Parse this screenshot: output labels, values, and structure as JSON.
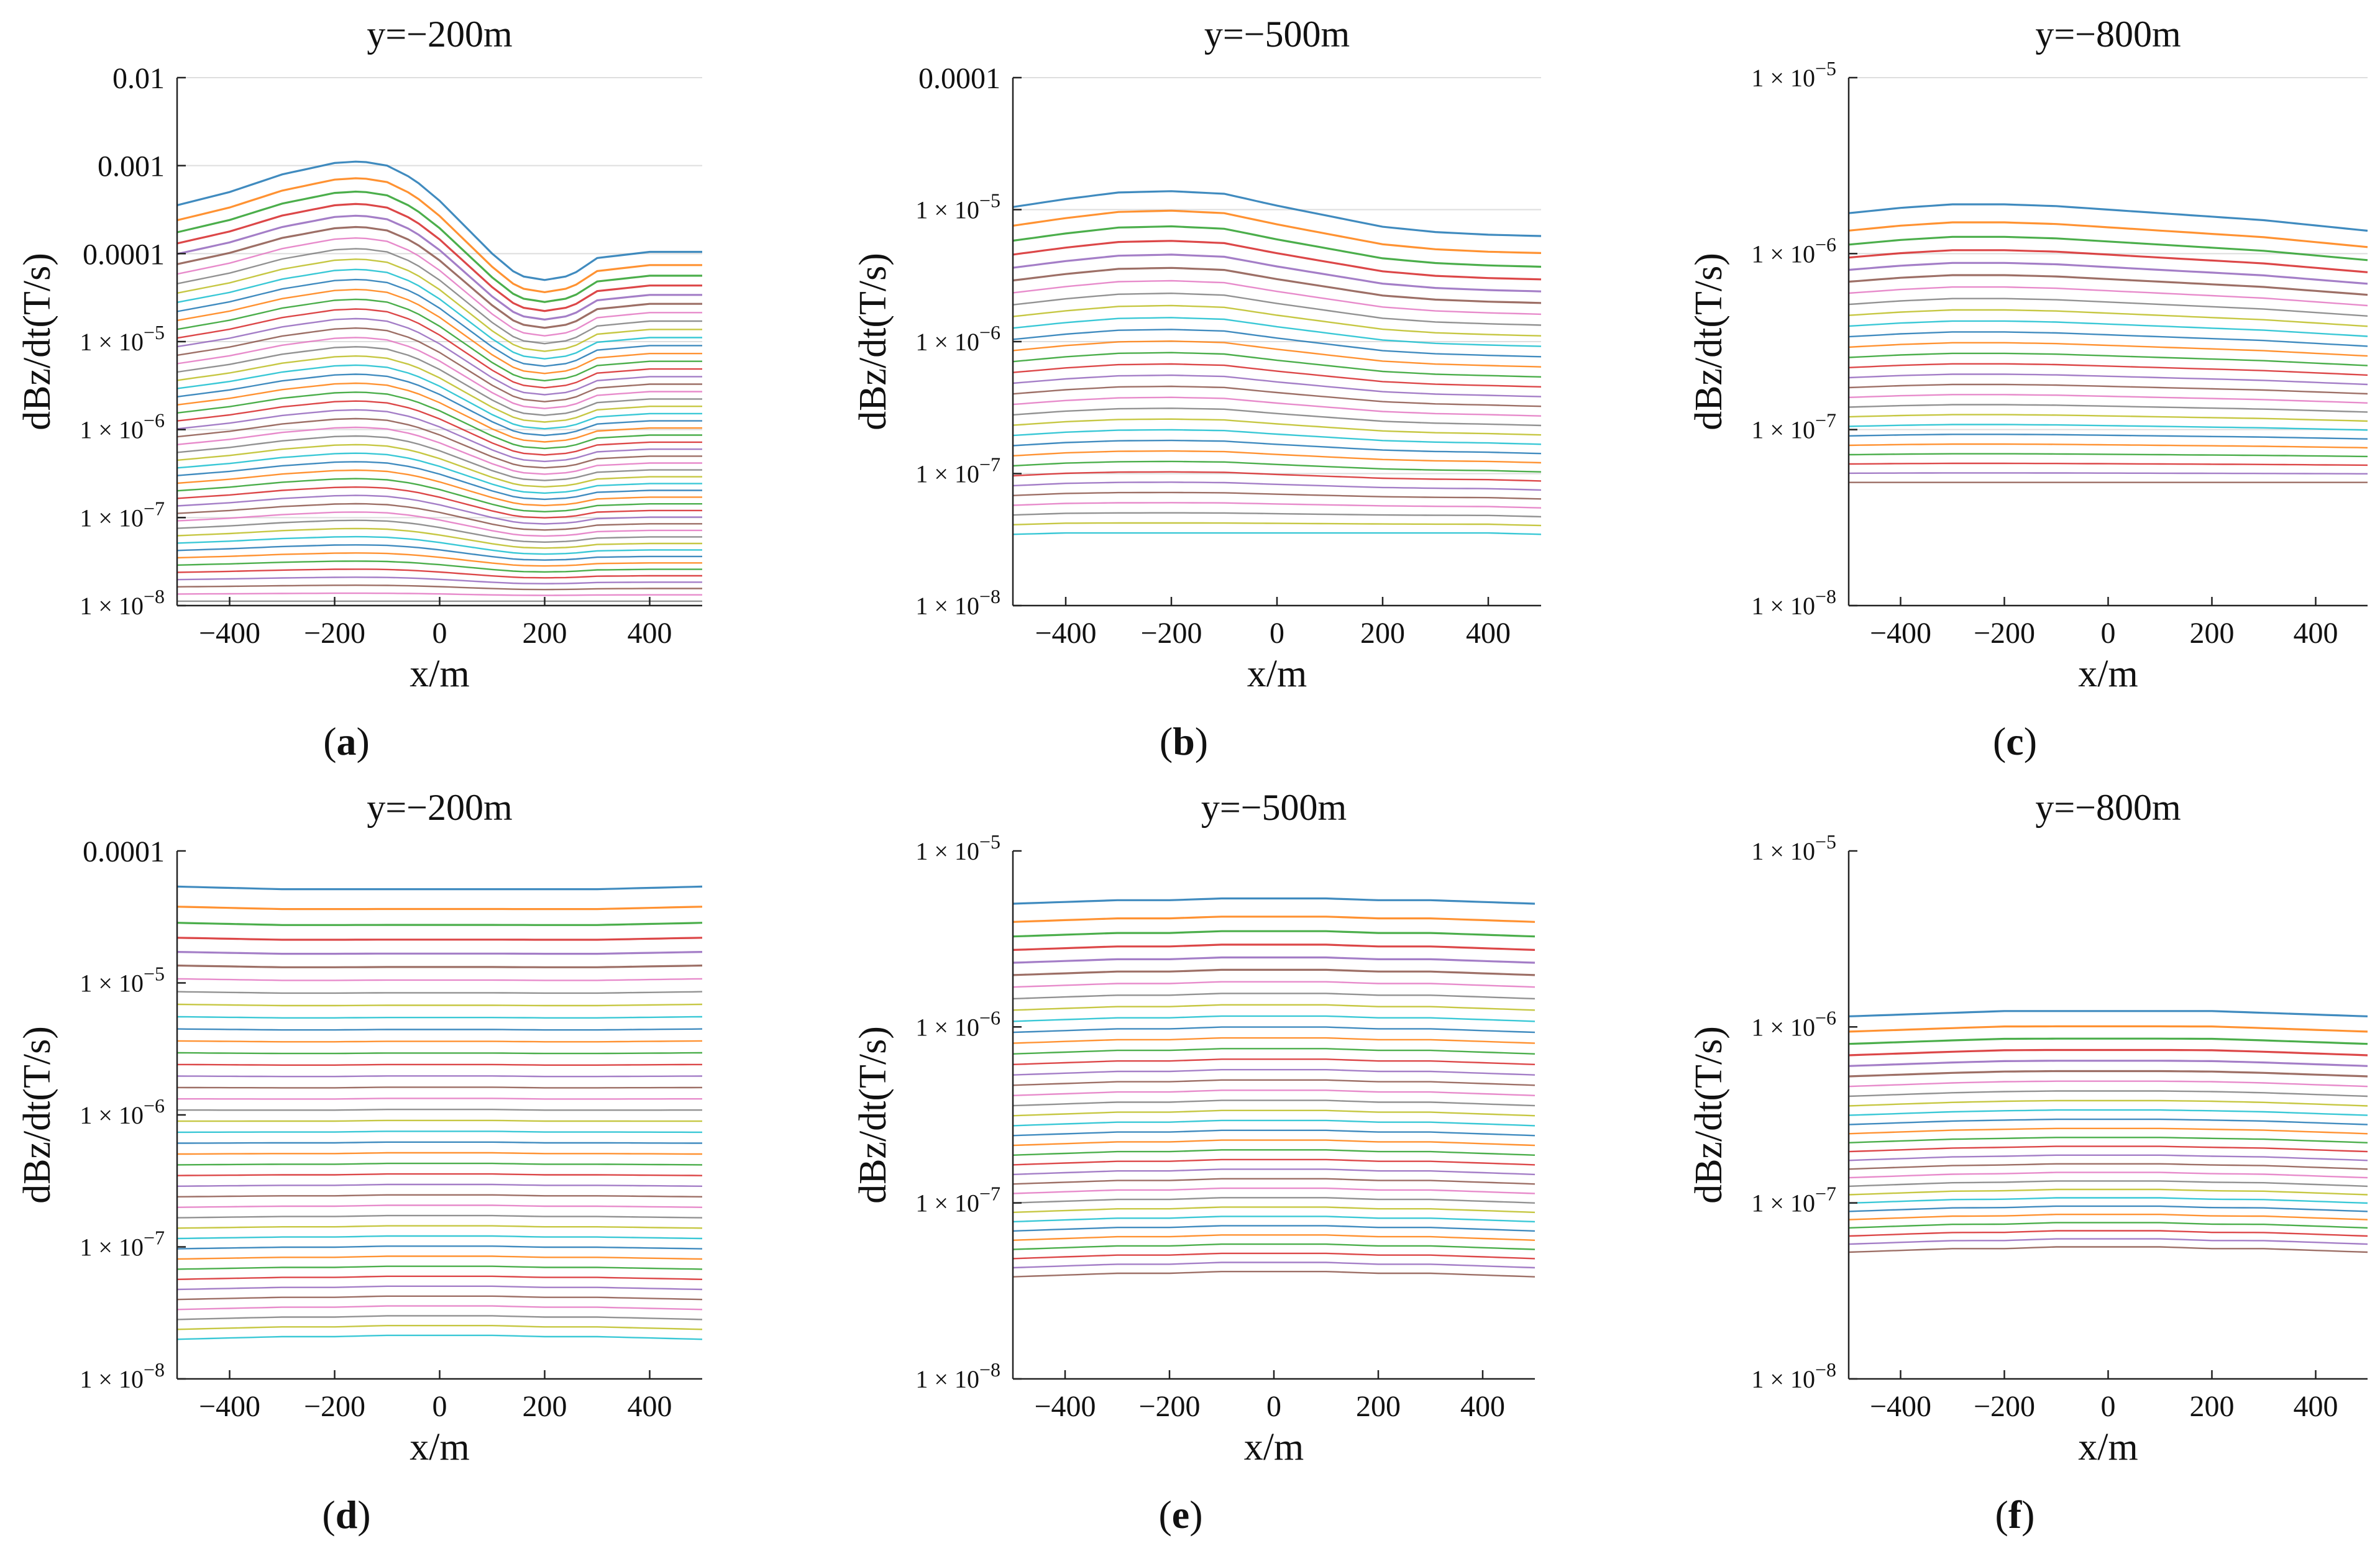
{
  "figure": {
    "panel_letter_open": "(",
    "panel_letter_close": ")"
  },
  "chart_data": [
    {
      "type": "line",
      "letter": "a",
      "title": "y=−200m",
      "xlabel": "x/m",
      "ylabel": "dBz/dt(T/s)",
      "xlim": [
        -500,
        500
      ],
      "xticks": [
        -400,
        -200,
        0,
        200,
        400
      ],
      "xtick_labels": [
        "−400",
        "−200",
        "0",
        "200",
        "400"
      ],
      "yscale": "log",
      "ylim_exp": [
        -8,
        -2
      ],
      "yticks": [
        {
          "exp": -2,
          "text": "0.01"
        },
        {
          "exp": -3,
          "text": "0.001"
        },
        {
          "exp": -4,
          "text": "0.0001"
        },
        {
          "exp": -5,
          "base": "1 × 10",
          "sup": "−5"
        },
        {
          "exp": -6,
          "base": "1 × 10",
          "sup": "−6"
        },
        {
          "exp": -7,
          "base": "1 × 10",
          "sup": "−7"
        },
        {
          "exp": -8,
          "base": "1 × 10",
          "sup": "−8"
        }
      ],
      "grid": true,
      "series_count": 48,
      "series_x": [
        -500,
        -400,
        -300,
        -200,
        -150,
        -100,
        -50,
        0,
        50,
        100,
        150,
        200,
        250,
        300,
        400,
        500
      ],
      "series_first_log10": [
        -3.45,
        -3.3,
        -3.1,
        -2.97,
        -2.95,
        -3.0,
        -3.15,
        -3.4,
        -3.7,
        -4.0,
        -4.25,
        -4.3,
        -4.25,
        -4.05,
        -3.98,
        -3.98
      ],
      "series_last_log10": [
        -7.95,
        -7.95,
        -7.95,
        -7.95,
        -7.95,
        -7.95,
        -7.95,
        -7.95,
        -7.95,
        -7.95,
        -7.95,
        -7.95,
        -7.95,
        -7.95,
        -7.95,
        -7.95
      ]
    },
    {
      "type": "line",
      "letter": "b",
      "title": "y=−500m",
      "xlabel": "x/m",
      "ylabel": "dBz/dt(T/s)",
      "xlim": [
        -500,
        500
      ],
      "xticks": [
        -400,
        -200,
        0,
        200,
        400
      ],
      "xtick_labels": [
        "−400",
        "−200",
        "0",
        "200",
        "400"
      ],
      "yscale": "log",
      "ylim_exp": [
        -8,
        -4
      ],
      "yticks": [
        {
          "exp": -4,
          "text": "0.0001"
        },
        {
          "exp": -5,
          "base": "1 × 10",
          "sup": "−5"
        },
        {
          "exp": -6,
          "base": "1 × 10",
          "sup": "−6"
        },
        {
          "exp": -7,
          "base": "1 × 10",
          "sup": "−7"
        },
        {
          "exp": -8,
          "base": "1 × 10",
          "sup": "−8"
        }
      ],
      "grid": true,
      "series_count": 30,
      "series_x": [
        -500,
        -400,
        -300,
        -200,
        -100,
        0,
        100,
        200,
        300,
        400,
        500
      ],
      "series_first_log10": [
        -4.98,
        -4.92,
        -4.87,
        -4.86,
        -4.88,
        -4.97,
        -5.05,
        -5.13,
        -5.17,
        -5.19,
        -5.2
      ],
      "series_last_log10": [
        -7.46,
        -7.45,
        -7.45,
        -7.45,
        -7.45,
        -7.45,
        -7.45,
        -7.45,
        -7.45,
        -7.45,
        -7.46
      ]
    },
    {
      "type": "line",
      "letter": "c",
      "title": "y=−800m",
      "xlabel": "x/m",
      "ylabel": "dBz/dt(T/s)",
      "xlim": [
        -500,
        500
      ],
      "xticks": [
        -400,
        -200,
        0,
        200,
        400
      ],
      "xtick_labels": [
        "−400",
        "−200",
        "0",
        "200",
        "400"
      ],
      "yscale": "log",
      "ylim_exp": [
        -8,
        -5
      ],
      "yticks": [
        {
          "exp": -5,
          "base": "1 × 10",
          "sup": "−5"
        },
        {
          "exp": -6,
          "base": "1 × 10",
          "sup": "−6"
        },
        {
          "exp": -7,
          "base": "1 × 10",
          "sup": "−7"
        },
        {
          "exp": -8,
          "base": "1 × 10",
          "sup": "−8"
        }
      ],
      "grid": true,
      "series_count": 26,
      "series_x": [
        -500,
        -400,
        -300,
        -200,
        -100,
        0,
        100,
        200,
        300,
        400,
        500
      ],
      "series_first_log10": [
        -5.77,
        -5.74,
        -5.72,
        -5.72,
        -5.73,
        -5.75,
        -5.77,
        -5.79,
        -5.81,
        -5.84,
        -5.87
      ],
      "series_last_log10": [
        -7.3,
        -7.3,
        -7.3,
        -7.3,
        -7.3,
        -7.3,
        -7.3,
        -7.3,
        -7.3,
        -7.3,
        -7.3
      ]
    },
    {
      "type": "line",
      "letter": "d",
      "title": "y=−200m",
      "xlabel": "x/m",
      "ylabel": "dBz/dt(T/s)",
      "xlim": [
        -500,
        500
      ],
      "xticks": [
        -400,
        -200,
        0,
        200,
        400
      ],
      "xtick_labels": [
        "−400",
        "−200",
        "0",
        "200",
        "400"
      ],
      "yscale": "log",
      "ylim_exp": [
        -8,
        -4
      ],
      "yticks": [
        {
          "exp": -4,
          "text": "0.0001"
        },
        {
          "exp": -5,
          "base": "1 × 10",
          "sup": "−5"
        },
        {
          "exp": -6,
          "base": "1 × 10",
          "sup": "−6"
        },
        {
          "exp": -7,
          "base": "1 × 10",
          "sup": "−7"
        },
        {
          "exp": -8,
          "base": "1 × 10",
          "sup": "−8"
        }
      ],
      "grid": false,
      "series_count": 40,
      "series_x": [
        -500,
        -400,
        -300,
        -200,
        -100,
        0,
        100,
        200,
        300,
        400,
        500
      ],
      "series_first_log10": [
        -4.27,
        -4.28,
        -4.29,
        -4.29,
        -4.29,
        -4.29,
        -4.29,
        -4.29,
        -4.29,
        -4.28,
        -4.27
      ],
      "series_last_log10": [
        -7.7,
        -7.69,
        -7.68,
        -7.68,
        -7.67,
        -7.67,
        -7.67,
        -7.68,
        -7.68,
        -7.69,
        -7.7
      ]
    },
    {
      "type": "line",
      "letter": "e",
      "title": "y=−500m",
      "xlabel": "x/m",
      "ylabel": "dBz/dt(T/s)",
      "xlim": [
        -500,
        500
      ],
      "xticks": [
        -400,
        -200,
        0,
        200,
        400
      ],
      "xtick_labels": [
        "−400",
        "−200",
        "0",
        "200",
        "400"
      ],
      "yscale": "log",
      "ylim_exp": [
        -8,
        -5
      ],
      "yticks": [
        {
          "exp": -5,
          "base": "1 × 10",
          "sup": "−5"
        },
        {
          "exp": -6,
          "base": "1 × 10",
          "sup": "−6"
        },
        {
          "exp": -7,
          "base": "1 × 10",
          "sup": "−7"
        },
        {
          "exp": -8,
          "base": "1 × 10",
          "sup": "−8"
        }
      ],
      "grid": false,
      "series_count": 36,
      "series_x": [
        -500,
        -400,
        -300,
        -200,
        -100,
        0,
        100,
        200,
        300,
        400,
        500
      ],
      "series_first_log10": [
        -5.3,
        -5.29,
        -5.28,
        -5.28,
        -5.27,
        -5.27,
        -5.27,
        -5.28,
        -5.28,
        -5.29,
        -5.3
      ],
      "series_last_log10": [
        -7.42,
        -7.41,
        -7.4,
        -7.4,
        -7.39,
        -7.39,
        -7.39,
        -7.4,
        -7.4,
        -7.41,
        -7.42
      ]
    },
    {
      "type": "line",
      "letter": "f",
      "title": "y=−800m",
      "xlabel": "x/m",
      "ylabel": "dBz/dt(T/s)",
      "xlim": [
        -500,
        500
      ],
      "xticks": [
        -400,
        -200,
        0,
        200,
        400
      ],
      "xtick_labels": [
        "−400",
        "−200",
        "0",
        "200",
        "400"
      ],
      "yscale": "log",
      "ylim_exp": [
        -8,
        -5
      ],
      "yticks": [
        {
          "exp": -5,
          "base": "1 × 10",
          "sup": "−5"
        },
        {
          "exp": -6,
          "base": "1 × 10",
          "sup": "−6"
        },
        {
          "exp": -7,
          "base": "1 × 10",
          "sup": "−7"
        },
        {
          "exp": -8,
          "base": "1 × 10",
          "sup": "−8"
        }
      ],
      "grid": false,
      "series_count": 26,
      "series_x": [
        -500,
        -400,
        -300,
        -200,
        -100,
        0,
        100,
        200,
        300,
        400,
        500
      ],
      "series_first_log10": [
        -5.94,
        -5.93,
        -5.92,
        -5.91,
        -5.91,
        -5.91,
        -5.91,
        -5.91,
        -5.92,
        -5.93,
        -5.94
      ],
      "series_last_log10": [
        -7.28,
        -7.27,
        -7.26,
        -7.26,
        -7.25,
        -7.25,
        -7.25,
        -7.26,
        -7.26,
        -7.27,
        -7.28
      ]
    }
  ],
  "palette": [
    "#1f77b4",
    "#ff7f0e",
    "#2ca02c",
    "#d62728",
    "#9467bd",
    "#8c564b",
    "#e377c2",
    "#7f7f7f",
    "#bcbd22",
    "#17becf"
  ]
}
